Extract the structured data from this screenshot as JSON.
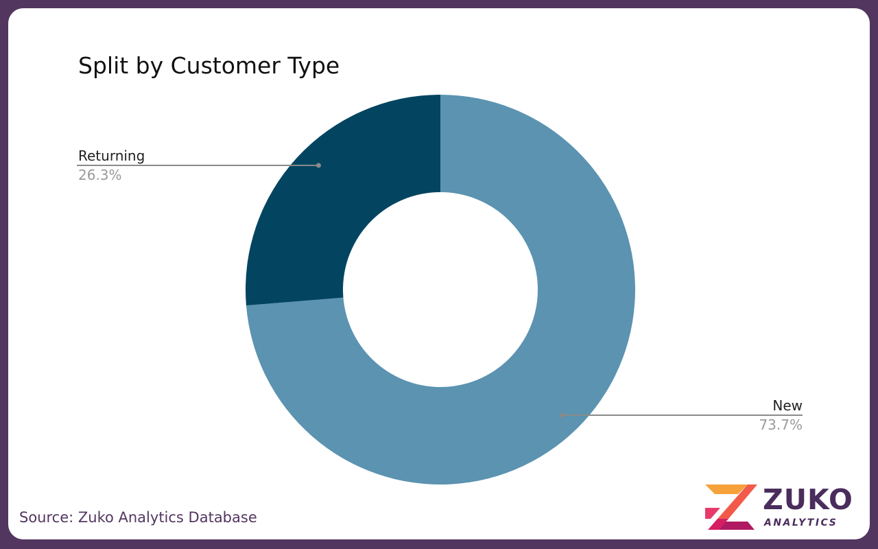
{
  "chart_data": {
    "type": "pie",
    "donut": true,
    "title": "Split by Customer Type",
    "categories": [
      "New",
      "Returning"
    ],
    "values": [
      73.7,
      26.3
    ],
    "labels": [
      "73.7%",
      "26.3%"
    ],
    "colors": [
      "#5b93b1",
      "#034560"
    ],
    "legend": "none"
  },
  "footer": {
    "source": "Source: Zuko Analytics Database"
  },
  "logo": {
    "word": "ZUKO",
    "sub": "ANALYTICS"
  },
  "colors": {
    "frame": "#523660",
    "background": "#ffffff",
    "label_value": "#9a9a9a",
    "leader_line": "#8a8a8a"
  }
}
